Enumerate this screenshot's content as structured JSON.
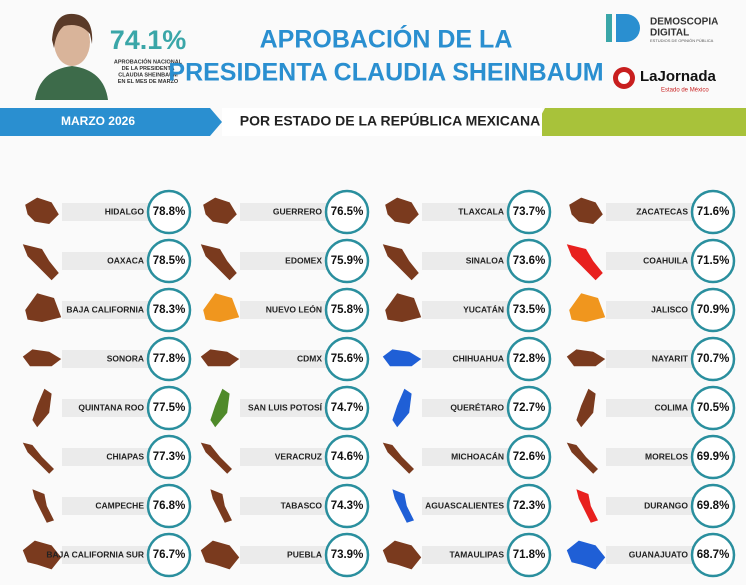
{
  "header": {
    "national_value": "74.1%",
    "national_caption": [
      "APROBACIÓN NACIONAL",
      "DE LA PRESIDENTA",
      "CLAUDIA SHEINBAUM",
      "EN EL MES DE MARZO"
    ],
    "title": [
      "APROBACIÓN DE LA",
      "PRESIDENTA CLAUDIA SHEINBAUM"
    ],
    "logo1_name": [
      "DEMOSCOPIA",
      "DIGITAL"
    ],
    "logo1_tagline": "ESTUDIOS DE OPINIÓN PÚBLICA",
    "logo2_name": "LaJornada",
    "logo2_tagline": "Estado de México"
  },
  "banner": {
    "date": "MARZO 2026",
    "subtitle": "POR ESTADO DE LA REPÚBLICA MEXICANA"
  },
  "states": [
    {
      "name": "HIDALGO",
      "value": "78.8%",
      "color": "#7a3a1e"
    },
    {
      "name": "OAXACA",
      "value": "78.5%",
      "color": "#7a3a1e"
    },
    {
      "name": "BAJA CALIFORNIA",
      "value": "78.3%",
      "color": "#7a3a1e"
    },
    {
      "name": "SONORA",
      "value": "77.8%",
      "color": "#7a3a1e"
    },
    {
      "name": "QUINTANA ROO",
      "value": "77.5%",
      "color": "#7a3a1e"
    },
    {
      "name": "CHIAPAS",
      "value": "77.3%",
      "color": "#7a3a1e"
    },
    {
      "name": "CAMPECHE",
      "value": "76.8%",
      "color": "#7a3a1e"
    },
    {
      "name": "BAJA CALIFORNIA SUR",
      "value": "76.7%",
      "color": "#7a3a1e"
    },
    {
      "name": "GUERRERO",
      "value": "76.5%",
      "color": "#7a3a1e"
    },
    {
      "name": "EDOMEX",
      "value": "75.9%",
      "color": "#7a3a1e"
    },
    {
      "name": "NUEVO LEÓN",
      "value": "75.8%",
      "color": "#f0961e"
    },
    {
      "name": "CDMX",
      "value": "75.6%",
      "color": "#7a3a1e"
    },
    {
      "name": "SAN LUIS POTOSÍ",
      "value": "74.7%",
      "color": "#4f8a2a"
    },
    {
      "name": "VERACRUZ",
      "value": "74.6%",
      "color": "#7a3a1e"
    },
    {
      "name": "TABASCO",
      "value": "74.3%",
      "color": "#7a3a1e"
    },
    {
      "name": "PUEBLA",
      "value": "73.9%",
      "color": "#7a3a1e"
    },
    {
      "name": "TLAXCALA",
      "value": "73.7%",
      "color": "#7a3a1e"
    },
    {
      "name": "SINALOA",
      "value": "73.6%",
      "color": "#7a3a1e"
    },
    {
      "name": "YUCATÁN",
      "value": "73.5%",
      "color": "#7a3a1e"
    },
    {
      "name": "CHIHUAHUA",
      "value": "72.8%",
      "color": "#1f5fd6"
    },
    {
      "name": "QUERÉTARO",
      "value": "72.7%",
      "color": "#1f5fd6"
    },
    {
      "name": "MICHOACÁN",
      "value": "72.6%",
      "color": "#7a3a1e"
    },
    {
      "name": "AGUASCALIENTES",
      "value": "72.3%",
      "color": "#1f5fd6"
    },
    {
      "name": "TAMAULIPAS",
      "value": "71.8%",
      "color": "#7a3a1e"
    },
    {
      "name": "ZACATECAS",
      "value": "71.6%",
      "color": "#7a3a1e"
    },
    {
      "name": "COAHUILA",
      "value": "71.5%",
      "color": "#e8201e"
    },
    {
      "name": "JALISCO",
      "value": "70.9%",
      "color": "#f0961e"
    },
    {
      "name": "NAYARIT",
      "value": "70.7%",
      "color": "#7a3a1e"
    },
    {
      "name": "COLIMA",
      "value": "70.5%",
      "color": "#7a3a1e"
    },
    {
      "name": "MORELOS",
      "value": "69.9%",
      "color": "#7a3a1e"
    },
    {
      "name": "DURANGO",
      "value": "69.8%",
      "color": "#e8201e"
    },
    {
      "name": "GUANAJUATO",
      "value": "68.7%",
      "color": "#1f5fd6"
    }
  ]
}
